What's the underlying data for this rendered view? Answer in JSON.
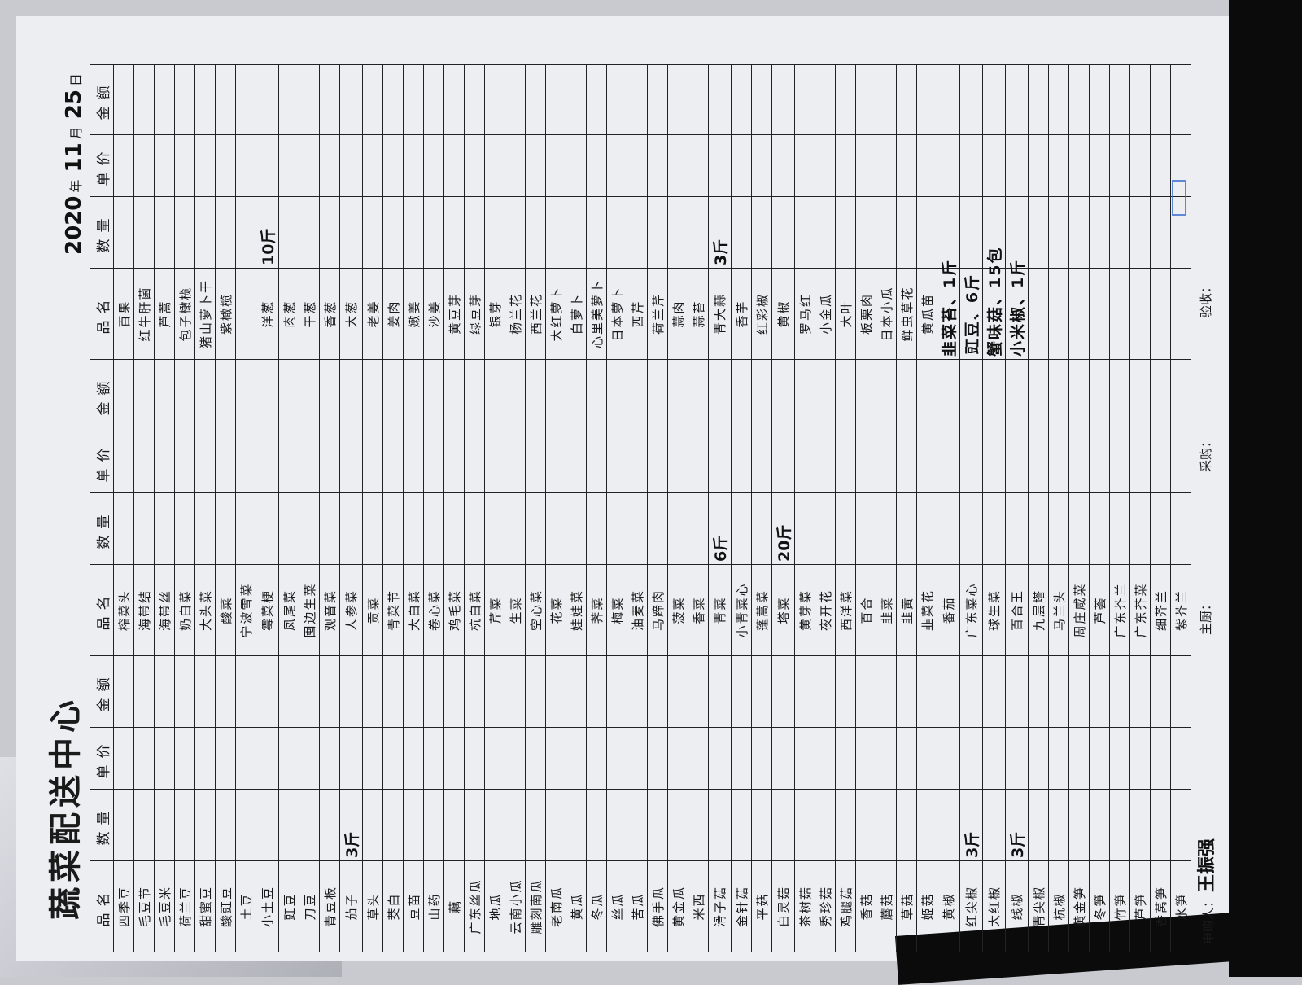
{
  "header": {
    "title": "蔬菜配送中心",
    "year": "2020",
    "year_label": "年",
    "month": "11",
    "month_label": "月",
    "day": "25",
    "day_label": "日"
  },
  "columns": [
    "品名",
    "数量",
    "单价",
    "金额"
  ],
  "groups": [
    {
      "items": [
        {
          "name": "四季豆"
        },
        {
          "name": "毛豆节"
        },
        {
          "name": "毛豆米"
        },
        {
          "name": "荷兰豆"
        },
        {
          "name": "甜蜜豆"
        },
        {
          "name": "酸豇豆"
        },
        {
          "name": "土豆"
        },
        {
          "name": "小土豆"
        },
        {
          "name": "豇豆"
        },
        {
          "name": "刀豆"
        },
        {
          "name": "青豆板"
        },
        {
          "name": "茄子",
          "qty": "3斤"
        },
        {
          "name": "草头"
        },
        {
          "name": "茭白"
        },
        {
          "name": "豆苗"
        },
        {
          "name": "山药"
        },
        {
          "name": "藕"
        },
        {
          "name": "广东丝瓜"
        },
        {
          "name": "地瓜"
        },
        {
          "name": "云南小瓜"
        },
        {
          "name": "雕刻南瓜"
        },
        {
          "name": "老南瓜"
        },
        {
          "name": "黄瓜"
        },
        {
          "name": "冬瓜"
        },
        {
          "name": "丝瓜"
        },
        {
          "name": "苦瓜"
        },
        {
          "name": "佛手瓜"
        },
        {
          "name": "黄金瓜"
        },
        {
          "name": "米西"
        },
        {
          "name": "滑子菇"
        },
        {
          "name": "金针菇"
        },
        {
          "name": "平菇"
        },
        {
          "name": "白灵菇"
        },
        {
          "name": "茶树菇"
        },
        {
          "name": "秀珍菇"
        },
        {
          "name": "鸡腿菇"
        },
        {
          "name": "香菇"
        },
        {
          "name": "蘑菇"
        },
        {
          "name": "草菇"
        },
        {
          "name": "姬菇"
        },
        {
          "name": "黄椒"
        },
        {
          "name": "红尖椒",
          "qty": "3斤"
        },
        {
          "name": "大红椒"
        },
        {
          "name": "线椒",
          "qty": "3斤"
        },
        {
          "name": "青尖椒"
        },
        {
          "name": "杭椒"
        },
        {
          "name": "黄金笋"
        },
        {
          "name": "冬笋"
        },
        {
          "name": "竹笋"
        },
        {
          "name": "芦笋"
        },
        {
          "name": "香莴笋"
        },
        {
          "name": "水笋"
        }
      ]
    },
    {
      "items": [
        {
          "name": "榨菜头"
        },
        {
          "name": "海带结"
        },
        {
          "name": "海带丝"
        },
        {
          "name": "奶白菜"
        },
        {
          "name": "大头菜"
        },
        {
          "name": "酸菜"
        },
        {
          "name": "宁波雪菜"
        },
        {
          "name": "霉菜梗"
        },
        {
          "name": "凤尾菜"
        },
        {
          "name": "囤边生菜"
        },
        {
          "name": "观音菜"
        },
        {
          "name": "人参菜"
        },
        {
          "name": "贡菜"
        },
        {
          "name": "青菜节"
        },
        {
          "name": "大白菜"
        },
        {
          "name": "卷心菜"
        },
        {
          "name": "鸡毛菜"
        },
        {
          "name": "杭白菜"
        },
        {
          "name": "芹菜"
        },
        {
          "name": "生菜"
        },
        {
          "name": "空心菜"
        },
        {
          "name": "花菜"
        },
        {
          "name": "娃娃菜"
        },
        {
          "name": "荠菜"
        },
        {
          "name": "梅菜"
        },
        {
          "name": "油麦菜"
        },
        {
          "name": "马蹄肉"
        },
        {
          "name": "菠菜"
        },
        {
          "name": "香菜"
        },
        {
          "name": "青菜",
          "qty": "6斤"
        },
        {
          "name": "小青菜心"
        },
        {
          "name": "蓬蒿菜"
        },
        {
          "name": "塔菜",
          "qty": "20斤"
        },
        {
          "name": "黄芽菜"
        },
        {
          "name": "夜开花"
        },
        {
          "name": "西洋菜"
        },
        {
          "name": "百合"
        },
        {
          "name": "韭菜"
        },
        {
          "name": "韭黄"
        },
        {
          "name": "韭菜花"
        },
        {
          "name": "番茄"
        },
        {
          "name": "广东菜心"
        },
        {
          "name": "球生菜"
        },
        {
          "name": "百合王"
        },
        {
          "name": "九层塔"
        },
        {
          "name": "马兰头"
        },
        {
          "name": "周庄咸菜"
        },
        {
          "name": "芦荟"
        },
        {
          "name": "广东芥兰"
        },
        {
          "name": "广东芥菜"
        },
        {
          "name": "细芥兰"
        },
        {
          "name": "紫芥兰"
        }
      ]
    },
    {
      "items": [
        {
          "name": "百果"
        },
        {
          "name": "红牛肝菌"
        },
        {
          "name": "芦蒿"
        },
        {
          "name": "包子橄榄"
        },
        {
          "name": "猪山萝卜干"
        },
        {
          "name": "紫橄榄"
        },
        {
          "name": ""
        },
        {
          "name": "洋葱",
          "qty": "10斤"
        },
        {
          "name": "肉葱"
        },
        {
          "name": "干葱"
        },
        {
          "name": "香葱"
        },
        {
          "name": "大葱"
        },
        {
          "name": "老姜"
        },
        {
          "name": "姜肉"
        },
        {
          "name": "嫩姜"
        },
        {
          "name": "沙姜"
        },
        {
          "name": "黄豆芽"
        },
        {
          "name": "绿豆芽"
        },
        {
          "name": "银芽"
        },
        {
          "name": "杨兰花"
        },
        {
          "name": "西兰花"
        },
        {
          "name": "大红萝卜"
        },
        {
          "name": "白萝卜"
        },
        {
          "name": "心里美萝卜"
        },
        {
          "name": "日本萝卜"
        },
        {
          "name": "西芹"
        },
        {
          "name": "荷兰芹"
        },
        {
          "name": "蒜肉"
        },
        {
          "name": "蒜苔"
        },
        {
          "name": "青大蒜",
          "qty": "3斤"
        },
        {
          "name": "香芋"
        },
        {
          "name": "红彩椒"
        },
        {
          "name": "黄椒"
        },
        {
          "name": "罗马红"
        },
        {
          "name": "小金瓜"
        },
        {
          "name": "大叶"
        },
        {
          "name": "板栗肉"
        },
        {
          "name": "日本小瓜"
        },
        {
          "name": "鲜虫草花"
        },
        {
          "name": "黄瓜苗"
        },
        {
          "name": "韭菜苔、1斤",
          "handwritten": true
        },
        {
          "name": "豇豆、6斤",
          "handwritten": true
        },
        {
          "name": "蟹味菇、15包",
          "handwritten": true
        },
        {
          "name": "小米椒、1斤",
          "handwritten": true
        }
      ]
    }
  ],
  "footer": {
    "requester_label": "申购人：",
    "requester_signature": "王振强",
    "chef_label": "主厨：",
    "purchaser_label": "采购：",
    "inspector_label": "验收："
  },
  "colors": {
    "paper": "#eceef2",
    "ink": "#1a1a1a",
    "stamp": "#3a6fd0"
  }
}
